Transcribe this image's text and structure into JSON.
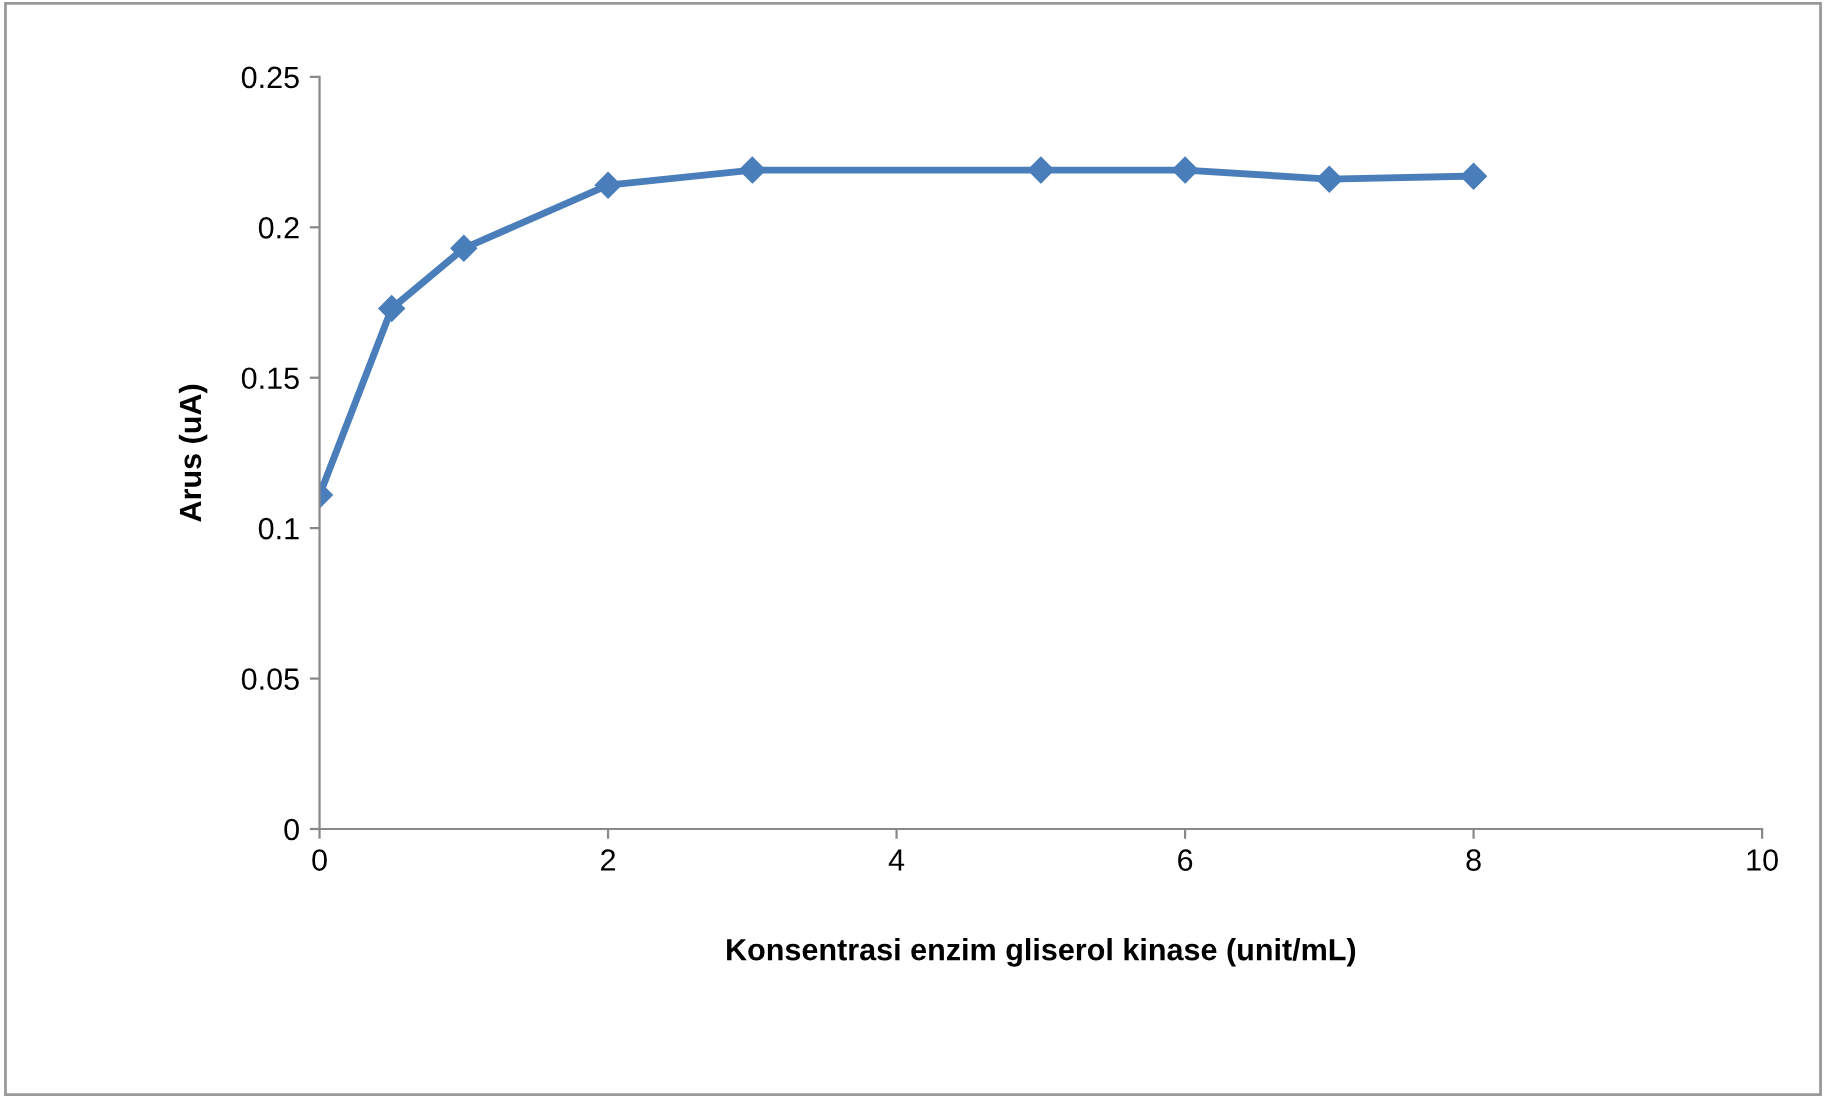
{
  "chart_data": {
    "type": "line",
    "xlabel": "Konsentrasi enzim gliserol kinase (unit/mL)",
    "ylabel": "Arus (uA)",
    "x": [
      0,
      0.5,
      1,
      2,
      3,
      5,
      6,
      7,
      8
    ],
    "series": [
      {
        "color": "#4a7ebb",
        "values": [
          0.111,
          0.173,
          0.193,
          0.214,
          0.219,
          0.219,
          0.219,
          0.216,
          0.217
        ]
      }
    ],
    "xlim": [
      0,
      10
    ],
    "xticks": [
      0,
      2,
      4,
      6,
      8,
      10
    ],
    "ylim": [
      0,
      0.25
    ],
    "yticks": [
      {
        "value": 0,
        "label": "0"
      },
      {
        "value": 0.05,
        "label": "0.05"
      },
      {
        "value": 0.1,
        "label": "0.1"
      },
      {
        "value": 0.15,
        "label": "0.15"
      },
      {
        "value": 0.2,
        "label": "0.2"
      },
      {
        "value": 0.25,
        "label": "0.25"
      }
    ],
    "marker": "diamond",
    "line_style": "solid",
    "grid": false,
    "legend": false
  }
}
